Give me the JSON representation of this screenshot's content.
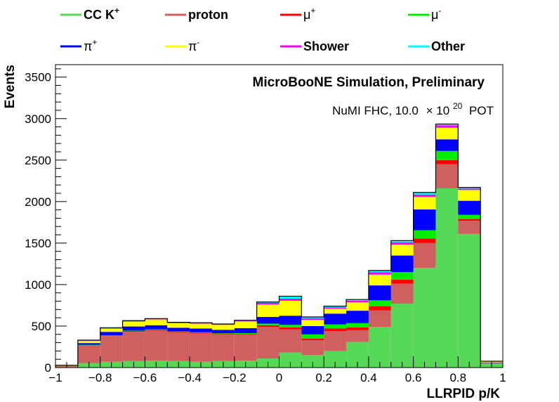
{
  "chart_data": {
    "type": "bar",
    "stacked": true,
    "title": "MicroBooNE Simulation, Preliminary",
    "subtitle": {
      "prefix": "NuMI FHC, 10.0",
      "times": "×",
      "base": "10",
      "exponent": "20",
      "suffix": "POT"
    },
    "xlabel": "LLRPID p/K",
    "ylabel": "Events",
    "xlim": [
      -1,
      1
    ],
    "ylim": [
      0,
      3650
    ],
    "bin_edges": [
      -1.0,
      -0.9,
      -0.8,
      -0.7,
      -0.6,
      -0.5,
      -0.4,
      -0.3,
      -0.2,
      -0.1,
      0.0,
      0.1,
      0.2,
      0.3,
      0.4,
      0.5,
      0.6,
      0.7,
      0.8,
      0.9,
      1.0
    ],
    "x_ticks": [
      {
        "value": -1.0,
        "label": "−1"
      },
      {
        "value": -0.8,
        "label": "−0.8"
      },
      {
        "value": -0.6,
        "label": "−0.6"
      },
      {
        "value": -0.4,
        "label": "−0.4"
      },
      {
        "value": -0.2,
        "label": "−0.2"
      },
      {
        "value": 0.0,
        "label": "0"
      },
      {
        "value": 0.2,
        "label": "0.2"
      },
      {
        "value": 0.4,
        "label": "0.4"
      },
      {
        "value": 0.6,
        "label": "0.6"
      },
      {
        "value": 0.8,
        "label": "0.8"
      },
      {
        "value": 1.0,
        "label": "1"
      }
    ],
    "y_ticks": [
      {
        "value": 0,
        "label": "0"
      },
      {
        "value": 500,
        "label": "500"
      },
      {
        "value": 1000,
        "label": "1000"
      },
      {
        "value": 1500,
        "label": "1500"
      },
      {
        "value": 2000,
        "label": "2000"
      },
      {
        "value": 2500,
        "label": "2500"
      },
      {
        "value": 3000,
        "label": "3000"
      },
      {
        "value": 3500,
        "label": "3500"
      }
    ],
    "legend_position": "top",
    "series": [
      {
        "name": "CC K",
        "sup": "+",
        "greek": false,
        "color": "#55d855",
        "values": [
          5,
          55,
          70,
          80,
          85,
          80,
          70,
          80,
          85,
          110,
          180,
          150,
          200,
          310,
          490,
          770,
          1200,
          2160,
          1610,
          45
        ]
      },
      {
        "name": "proton",
        "sup": "",
        "greek": false,
        "color": "#d06060",
        "values": [
          15,
          210,
          310,
          350,
          360,
          340,
          340,
          320,
          310,
          380,
          280,
          180,
          240,
          140,
          200,
          240,
          300,
          290,
          160,
          10
        ]
      },
      {
        "name": "μ",
        "sup": "+",
        "greek": true,
        "color": "#ff0000",
        "values": [
          1,
          5,
          5,
          10,
          10,
          10,
          10,
          10,
          10,
          20,
          25,
          20,
          30,
          35,
          50,
          50,
          55,
          50,
          20,
          1
        ]
      },
      {
        "name": "μ",
        "sup": "-",
        "greek": true,
        "color": "#00ee00",
        "values": [
          1,
          5,
          5,
          5,
          5,
          5,
          5,
          5,
          10,
          20,
          30,
          50,
          50,
          50,
          70,
          90,
          100,
          110,
          50,
          1
        ]
      },
      {
        "name": "π",
        "sup": "+",
        "greek": true,
        "color": "#0000ff",
        "values": [
          1,
          20,
          40,
          50,
          50,
          45,
          45,
          40,
          60,
          80,
          110,
          100,
          130,
          150,
          180,
          200,
          250,
          140,
          170,
          5
        ]
      },
      {
        "name": "π",
        "sup": "-",
        "greek": true,
        "color": "#ffff00",
        "values": [
          3,
          25,
          40,
          60,
          70,
          55,
          60,
          60,
          80,
          150,
          180,
          75,
          60,
          100,
          130,
          130,
          150,
          140,
          130,
          10
        ]
      },
      {
        "name": "Shower",
        "sup": "",
        "greek": false,
        "color": "#ff00ff",
        "values": [
          1,
          5,
          5,
          5,
          5,
          5,
          5,
          5,
          10,
          20,
          25,
          20,
          15,
          20,
          30,
          30,
          30,
          30,
          15,
          2
        ]
      },
      {
        "name": "Other",
        "sup": "",
        "greek": false,
        "color": "#00ffff",
        "values": [
          1,
          5,
          5,
          5,
          5,
          5,
          5,
          5,
          5,
          10,
          30,
          15,
          15,
          15,
          20,
          20,
          25,
          15,
          15,
          2
        ]
      }
    ]
  }
}
